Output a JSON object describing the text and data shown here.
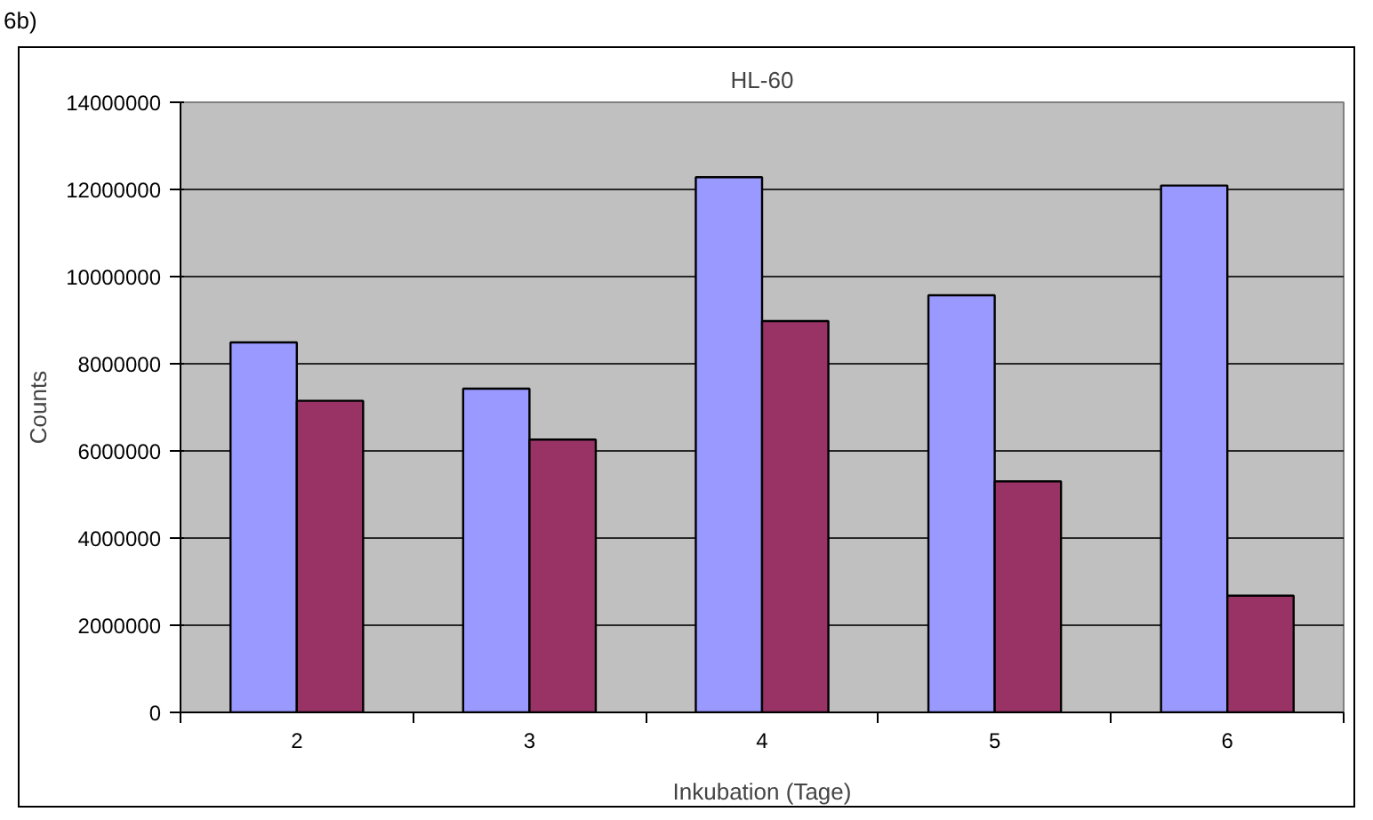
{
  "chart_data": {
    "type": "bar",
    "title": "HL-60",
    "xlabel": "Inkubation (Tage)",
    "ylabel": "Counts",
    "annotations": [
      "6b)"
    ],
    "categories": [
      "2",
      "3",
      "4",
      "5",
      "6"
    ],
    "series": [
      {
        "color": "#9999ff",
        "values": [
          8490000,
          7430000,
          12280000,
          9570000,
          12090000
        ]
      },
      {
        "color": "#993366",
        "values": [
          7150000,
          6260000,
          8980000,
          5300000,
          2680000
        ]
      }
    ],
    "ylim": [
      0,
      14000000
    ],
    "yticks": [
      0,
      2000000,
      4000000,
      6000000,
      8000000,
      10000000,
      12000000,
      14000000
    ],
    "grid": "y"
  }
}
